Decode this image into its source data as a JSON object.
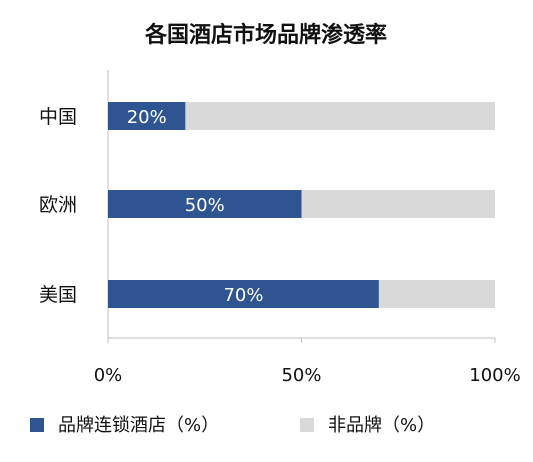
{
  "chart_data": {
    "type": "bar",
    "orientation": "horizontal",
    "stacked": true,
    "title": "各国酒店市场品牌渗透率",
    "categories": [
      "中国",
      "欧洲",
      "美国"
    ],
    "series": [
      {
        "name": "品牌连锁酒店（%）",
        "values": [
          20,
          50,
          70
        ],
        "color": "#2e5591"
      },
      {
        "name": "非品牌（%）",
        "values": [
          80,
          50,
          30
        ],
        "color": "#d9d9d9"
      }
    ],
    "data_labels": [
      "20%",
      "50%",
      "70%"
    ],
    "x_ticks": [
      "0%",
      "50%",
      "100%"
    ],
    "xlim": [
      0,
      100
    ],
    "xlabel": "",
    "ylabel": "",
    "grid": false,
    "legend_position": "bottom"
  }
}
